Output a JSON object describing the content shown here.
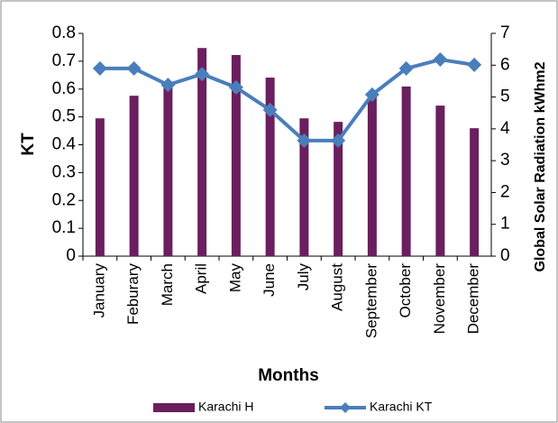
{
  "chart_data": {
    "type": "bar-line",
    "categories": [
      "January",
      "Feburary",
      "March",
      "April",
      "May",
      "June",
      "July",
      "August",
      "September",
      "October",
      "November",
      "December"
    ],
    "series": [
      {
        "name": "Karachi H",
        "type": "bar",
        "axis": "y2",
        "color": "#6b1f5e",
        "values": [
          4.33,
          5.04,
          5.3,
          6.54,
          6.32,
          5.61,
          4.33,
          4.22,
          5.13,
          5.33,
          4.73,
          4.02
        ]
      },
      {
        "name": "Karachi KT",
        "type": "line",
        "axis": "y",
        "color": "#4a7ebb",
        "values": [
          0.674,
          0.674,
          0.615,
          0.654,
          0.606,
          0.525,
          0.415,
          0.415,
          0.58,
          0.674,
          0.706,
          0.687
        ]
      }
    ],
    "xlabel": "Months",
    "ylabel": "KT",
    "y2label": "Global Solar Radiation kWhm2",
    "ylim": [
      0,
      0.8
    ],
    "yticks": [
      0,
      0.1,
      0.2,
      0.3,
      0.4,
      0.5,
      0.6,
      0.7,
      0.8
    ],
    "y2lim": [
      0,
      7
    ],
    "y2ticks": [
      0,
      1,
      2,
      3,
      4,
      5,
      6,
      7
    ],
    "legend": "bottom"
  }
}
